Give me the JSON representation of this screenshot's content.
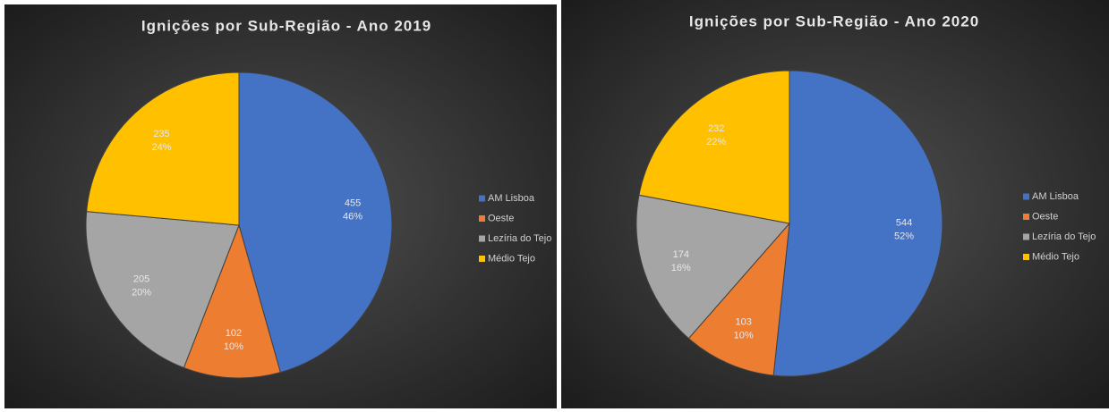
{
  "chart_data": [
    {
      "type": "pie",
      "title": "Ignições por Sub-Região - Ano 2019",
      "categories": [
        "AM Lisboa",
        "Oeste",
        "Lezíria do Tejo",
        "Médio Tejo"
      ],
      "values": [
        455,
        102,
        205,
        235
      ],
      "percent_labels": [
        "46%",
        "10%",
        "20%",
        "24%"
      ],
      "colors": [
        "#4472c4",
        "#ed7d31",
        "#a5a5a5",
        "#ffc000"
      ],
      "legend": "right"
    },
    {
      "type": "pie",
      "title": "Ignições por Sub-Região - Ano 2020",
      "categories": [
        "AM Lisboa",
        "Oeste",
        "Lezíria do Tejo",
        "Médio Tejo"
      ],
      "values": [
        544,
        103,
        174,
        232
      ],
      "percent_labels": [
        "52%",
        "10%",
        "16%",
        "22%"
      ],
      "colors": [
        "#4472c4",
        "#ed7d31",
        "#a5a5a5",
        "#ffc000"
      ],
      "legend": "right"
    }
  ]
}
